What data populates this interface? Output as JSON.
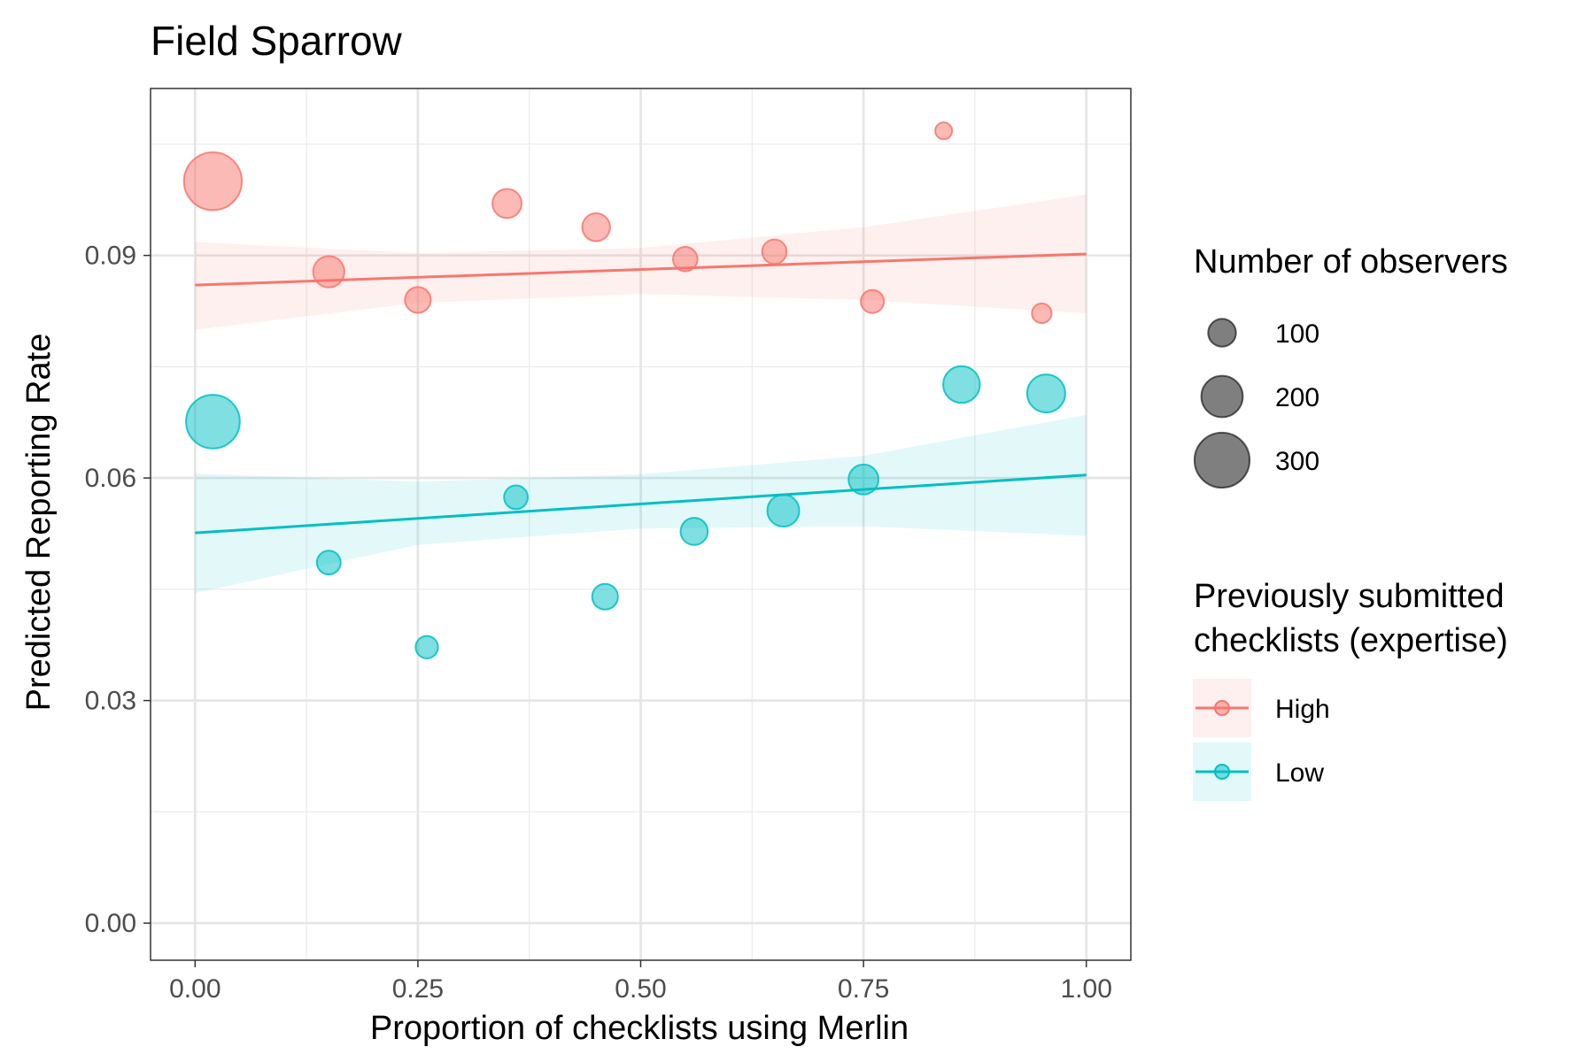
{
  "chart_data": {
    "type": "scatter",
    "title": "Field Sparrow",
    "xlabel": "Proportion of checklists using Merlin",
    "ylabel": "Predicted Reporting Rate",
    "xlim": [
      -0.05,
      1.05
    ],
    "ylim": [
      -0.005,
      0.1125
    ],
    "x_ticks": [
      0.0,
      0.25,
      0.5,
      0.75,
      1.0
    ],
    "x_tick_labels": [
      "0.00",
      "0.25",
      "0.50",
      "0.75",
      "1.00"
    ],
    "x_minor_ticks": [
      0.125,
      0.375,
      0.625,
      0.875
    ],
    "y_ticks": [
      0.0,
      0.03,
      0.06,
      0.09
    ],
    "y_tick_labels": [
      "0.00",
      "0.03",
      "0.06",
      "0.09"
    ],
    "y_minor_ticks": [
      0.015,
      0.045,
      0.075,
      0.105
    ],
    "grid": true,
    "series": [
      {
        "name": "High",
        "color": "#F8766D",
        "points": [
          {
            "x": 0.02,
            "y": 0.1,
            "observers": 320
          },
          {
            "x": 0.15,
            "y": 0.0878,
            "observers": 125
          },
          {
            "x": 0.25,
            "y": 0.084,
            "observers": 85
          },
          {
            "x": 0.35,
            "y": 0.097,
            "observers": 110
          },
          {
            "x": 0.45,
            "y": 0.0938,
            "observers": 100
          },
          {
            "x": 0.55,
            "y": 0.0895,
            "observers": 75
          },
          {
            "x": 0.65,
            "y": 0.0905,
            "observers": 75
          },
          {
            "x": 0.76,
            "y": 0.0838,
            "observers": 65
          },
          {
            "x": 0.84,
            "y": 0.1068,
            "observers": 20
          },
          {
            "x": 0.95,
            "y": 0.0822,
            "observers": 40
          }
        ],
        "fit": {
          "x": [
            0.0,
            1.0
          ],
          "y": [
            0.086,
            0.0902
          ]
        },
        "ribbon": {
          "x": [
            0.0,
            0.25,
            0.5,
            0.75,
            1.0
          ],
          "lower": [
            0.08,
            0.0836,
            0.0848,
            0.084,
            0.0822
          ],
          "upper": [
            0.0918,
            0.0903,
            0.091,
            0.0938,
            0.0982
          ]
        }
      },
      {
        "name": "Low",
        "color": "#00BFC4",
        "points": [
          {
            "x": 0.02,
            "y": 0.0676,
            "observers": 290
          },
          {
            "x": 0.15,
            "y": 0.0486,
            "observers": 70
          },
          {
            "x": 0.26,
            "y": 0.0372,
            "observers": 60
          },
          {
            "x": 0.36,
            "y": 0.0574,
            "observers": 70
          },
          {
            "x": 0.46,
            "y": 0.044,
            "observers": 85
          },
          {
            "x": 0.56,
            "y": 0.0528,
            "observers": 95
          },
          {
            "x": 0.66,
            "y": 0.0556,
            "observers": 130
          },
          {
            "x": 0.75,
            "y": 0.0598,
            "observers": 115
          },
          {
            "x": 0.86,
            "y": 0.0726,
            "observers": 165
          },
          {
            "x": 0.955,
            "y": 0.0714,
            "observers": 175
          }
        ],
        "fit": {
          "x": [
            0.0,
            1.0
          ],
          "y": [
            0.0526,
            0.0604
          ]
        },
        "ribbon": {
          "x": [
            0.0,
            0.25,
            0.5,
            0.75,
            1.0
          ],
          "lower": [
            0.0445,
            0.051,
            0.0532,
            0.0535,
            0.0522
          ],
          "upper": [
            0.0606,
            0.0595,
            0.0605,
            0.063,
            0.0685
          ]
        }
      }
    ],
    "size_legend": {
      "title": "Number of observers",
      "values": [
        100,
        200,
        300
      ],
      "labels": [
        "100",
        "200",
        "300"
      ]
    },
    "color_legend": {
      "title_line1": "Previously submitted",
      "title_line2": "checklists (expertise)",
      "entries": [
        "High",
        "Low"
      ]
    },
    "legend_position": "right"
  }
}
